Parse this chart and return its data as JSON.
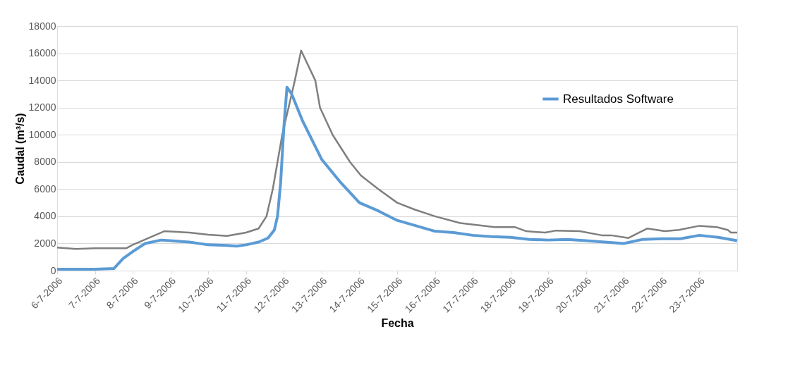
{
  "chart_data": {
    "type": "line",
    "xlabel": "Fecha",
    "ylabel": "Caudal (m³/s)",
    "xlim": [
      "2006-07-06",
      "2006-07-24"
    ],
    "xticks": [
      {
        "value": "2006-07-06",
        "label": "6-7-2006"
      },
      {
        "value": "2006-07-07",
        "label": "7-7-2006"
      },
      {
        "value": "2006-07-08",
        "label": "8-7-2006"
      },
      {
        "value": "2006-07-09",
        "label": "9-7-2006"
      },
      {
        "value": "2006-07-10",
        "label": "10-7-2006"
      },
      {
        "value": "2006-07-11",
        "label": "11-7-2006"
      },
      {
        "value": "2006-07-12",
        "label": "12-7-2006"
      },
      {
        "value": "2006-07-13",
        "label": "13-7-2006"
      },
      {
        "value": "2006-07-14",
        "label": "14-7-2006"
      },
      {
        "value": "2006-07-15",
        "label": "15-7-2006"
      },
      {
        "value": "2006-07-16",
        "label": "16-7-2006"
      },
      {
        "value": "2006-07-17",
        "label": "17-7-2006"
      },
      {
        "value": "2006-07-18",
        "label": "18-7-2006"
      },
      {
        "value": "2006-07-19",
        "label": "19-7-2006"
      },
      {
        "value": "2006-07-20",
        "label": "20-7-2006"
      },
      {
        "value": "2006-07-21",
        "label": "21-7-2006"
      },
      {
        "value": "2006-07-22",
        "label": "22-7-2006"
      },
      {
        "value": "2006-07-23",
        "label": "23-7-2006"
      }
    ],
    "ylim": [
      0,
      18000
    ],
    "yticks": [
      0,
      2000,
      4000,
      6000,
      8000,
      10000,
      12000,
      14000,
      16000,
      18000
    ],
    "grid": "y",
    "legend": "top right",
    "marker": "none",
    "line_style": "solid",
    "series": [
      {
        "color": "#7f7f7f",
        "x": [
          "2006-07-06T00:00",
          "2006-07-06T12:00",
          "2006-07-07T00:00",
          "2006-07-07T20:00",
          "2006-07-08T00:00",
          "2006-07-08T12:00",
          "2006-07-08T20:00",
          "2006-07-09T12:00",
          "2006-07-10T00:00",
          "2006-07-10T12:00",
          "2006-07-11T00:00",
          "2006-07-11T08:00",
          "2006-07-11T13:00",
          "2006-07-11T17:00",
          "2006-07-11T20:00",
          "2006-07-11T23:00",
          "2006-07-12T03:00",
          "2006-07-12T07:00",
          "2006-07-12T11:00",
          "2006-07-12T20:00",
          "2006-07-12T23:00",
          "2006-07-13T07:00",
          "2006-07-13T18:00",
          "2006-07-14T01:00",
          "2006-07-14T12:00",
          "2006-07-15T00:00",
          "2006-07-15T11:00",
          "2006-07-16T00:00",
          "2006-07-16T16:00",
          "2006-07-17T14:00",
          "2006-07-18T03:00",
          "2006-07-18T10:00",
          "2006-07-18T22:00",
          "2006-07-19T05:00",
          "2006-07-19T20:00",
          "2006-07-20T10:00",
          "2006-07-20T16:00",
          "2006-07-21T03:00",
          "2006-07-21T08:00",
          "2006-07-21T15:00",
          "2006-07-22T02:00",
          "2006-07-22T11:00",
          "2006-07-23T00:00",
          "2006-07-23T11:00",
          "2006-07-23T18:00",
          "2006-07-23T20:00",
          "2006-07-24T00:00"
        ],
        "values": [
          1700,
          1600,
          1650,
          1650,
          1900,
          2500,
          2900,
          2800,
          2650,
          2550,
          2800,
          3100,
          4000,
          6000,
          8000,
          10000,
          12000,
          14000,
          16200,
          14000,
          12000,
          10000,
          8000,
          7000,
          6000,
          5000,
          4500,
          4000,
          3500,
          3200,
          3200,
          2900,
          2800,
          2950,
          2900,
          2600,
          2600,
          2400,
          2700,
          3100,
          2900,
          3000,
          3300,
          3200,
          3000,
          2800,
          2800
        ]
      },
      {
        "name": "Resultados Software",
        "color": "#5b9bd5",
        "x": [
          "2006-07-06T00:00",
          "2006-07-07T00:00",
          "2006-07-07T12:00",
          "2006-07-07T18:00",
          "2006-07-08T00:00",
          "2006-07-08T08:00",
          "2006-07-08T18:00",
          "2006-07-09T00:00",
          "2006-07-09T12:00",
          "2006-07-10T00:00",
          "2006-07-10T12:00",
          "2006-07-10T18:00",
          "2006-07-11T00:00",
          "2006-07-11T08:00",
          "2006-07-11T14:00",
          "2006-07-11T18:00",
          "2006-07-11T20:00",
          "2006-07-11T22:00",
          "2006-07-12T00:00",
          "2006-07-12T02:00",
          "2006-07-12T05:00",
          "2006-07-12T12:00",
          "2006-07-13T00:00",
          "2006-07-13T12:00",
          "2006-07-14T00:00",
          "2006-07-14T12:00",
          "2006-07-15T00:00",
          "2006-07-15T12:00",
          "2006-07-16T00:00",
          "2006-07-16T12:00",
          "2006-07-17T00:00",
          "2006-07-17T12:00",
          "2006-07-18T00:00",
          "2006-07-18T12:00",
          "2006-07-19T00:00",
          "2006-07-19T12:00",
          "2006-07-20T00:00",
          "2006-07-20T12:00",
          "2006-07-21T00:00",
          "2006-07-21T12:00",
          "2006-07-22T00:00",
          "2006-07-22T12:00",
          "2006-07-23T00:00",
          "2006-07-23T12:00",
          "2006-07-24T00:00"
        ],
        "values": [
          100,
          100,
          150,
          900,
          1400,
          2000,
          2250,
          2200,
          2100,
          1900,
          1850,
          1800,
          1900,
          2100,
          2400,
          3000,
          4000,
          6500,
          10500,
          13500,
          13000,
          11000,
          8200,
          6500,
          5000,
          4400,
          3700,
          3300,
          2900,
          2800,
          2600,
          2500,
          2450,
          2300,
          2250,
          2300,
          2200,
          2100,
          2000,
          2300,
          2350,
          2350,
          2600,
          2450,
          2200
        ]
      }
    ]
  }
}
